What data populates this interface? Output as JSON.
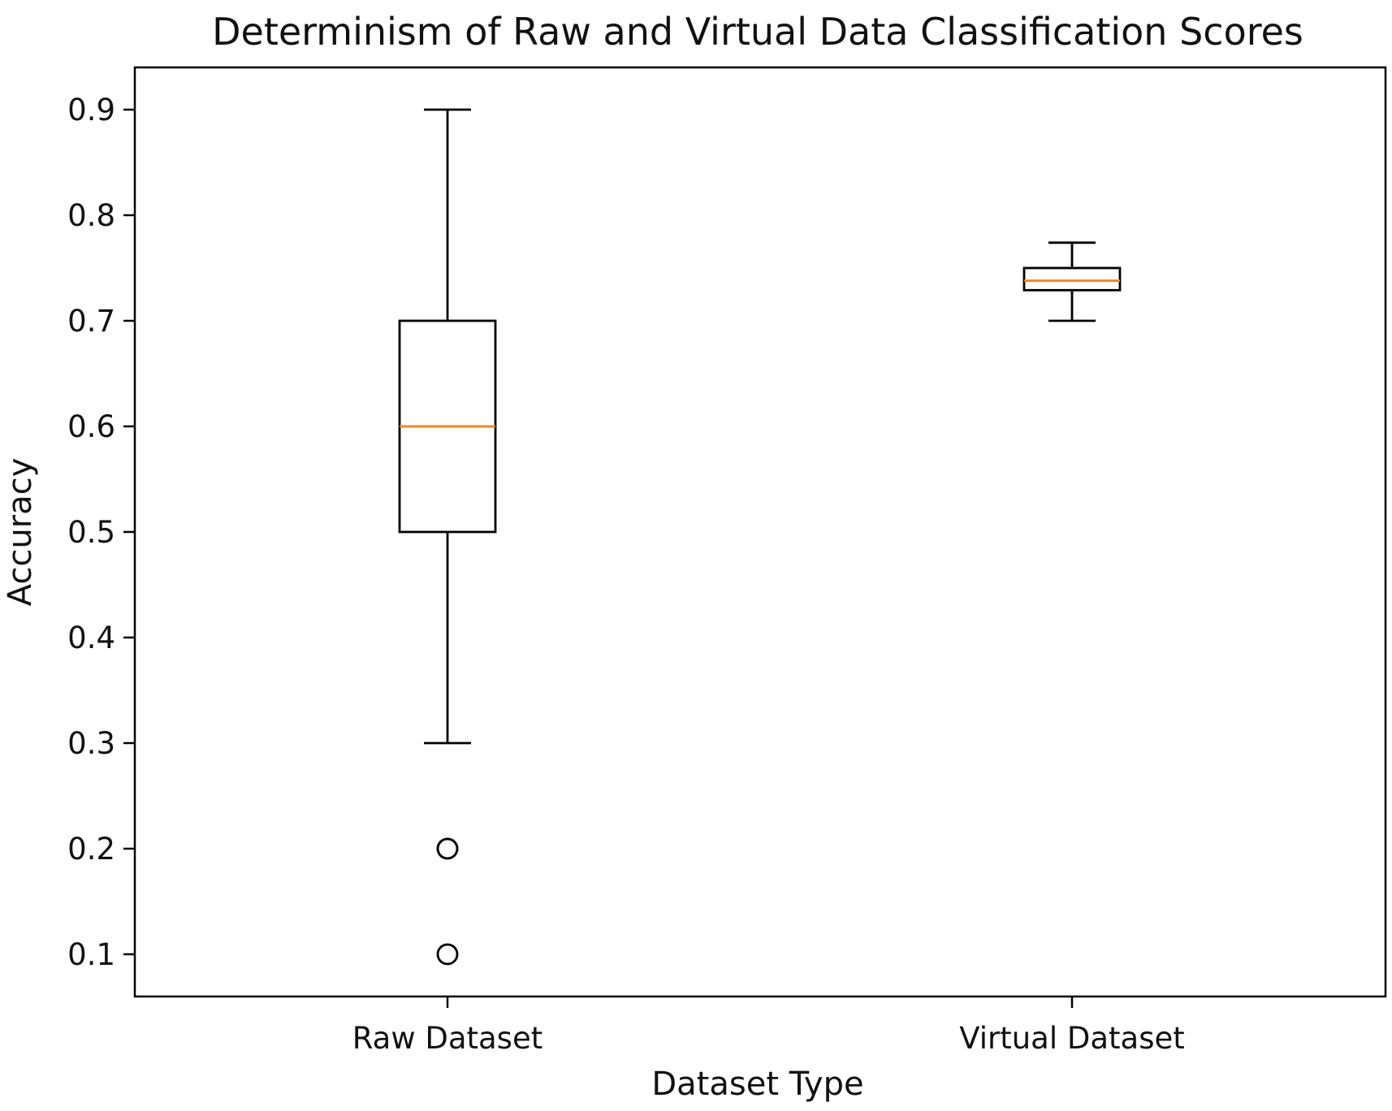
{
  "chart_data": {
    "type": "box",
    "title": "Determinism of Raw  and Virtual Data Classification Scores",
    "xlabel": "Dataset Type",
    "ylabel": "Accuracy",
    "ylim": [
      0.06,
      0.94
    ],
    "yticks": [
      "0.1",
      "0.2",
      "0.3",
      "0.4",
      "0.5",
      "0.6",
      "0.7",
      "0.8",
      "0.9"
    ],
    "grid": false,
    "categories": [
      "Raw Dataset",
      "Virtual Dataset"
    ],
    "boxes": [
      {
        "category": "Raw Dataset",
        "whisker_low": 0.3,
        "q1": 0.5,
        "median": 0.6,
        "q3": 0.7,
        "whisker_high": 0.9,
        "outliers": [
          0.2,
          0.2,
          0.1
        ]
      },
      {
        "category": "Virtual Dataset",
        "whisker_low": 0.7,
        "q1": 0.729,
        "median": 0.738,
        "q3": 0.75,
        "whisker_high": 0.774,
        "outliers": []
      }
    ],
    "colors": {
      "box": "#000000",
      "median": "#ff7f0e",
      "outlier": "#000000",
      "axes": "#000000"
    }
  }
}
